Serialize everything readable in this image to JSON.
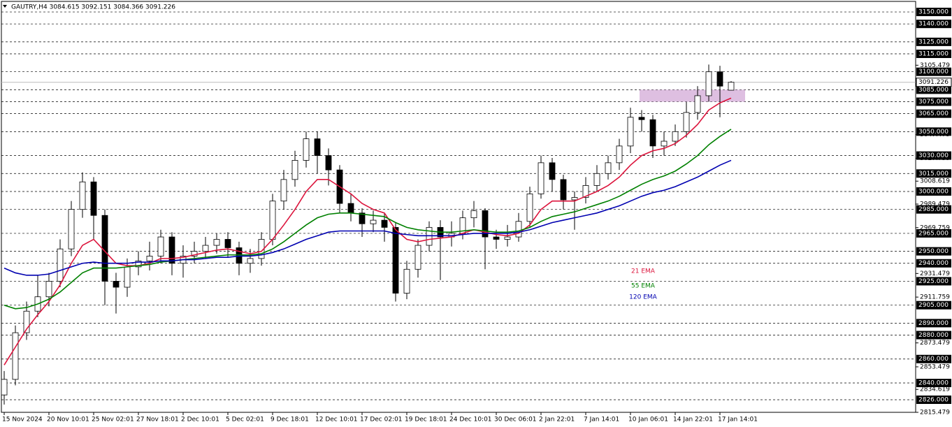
{
  "chart_data": {
    "type": "candlestick",
    "title": "GAUTRY,H4  3084.615 3092.151 3084.366 3091.226",
    "categories": [
      "15 Nov 2024",
      null,
      null,
      null,
      "20 Nov 10:01",
      null,
      null,
      null,
      "25 Nov 02:01",
      null,
      null,
      null,
      "27 Nov 18:01",
      null,
      null,
      null,
      "2 Dec 10:01",
      null,
      null,
      null,
      "5 Dec 02:01",
      null,
      null,
      null,
      "9 Dec 18:01",
      null,
      null,
      null,
      "12 Dec 10:01",
      null,
      null,
      null,
      "17 Dec 02:01",
      null,
      null,
      null,
      "19 Dec 18:01",
      null,
      null,
      null,
      "24 Dec 10:01",
      null,
      null,
      null,
      "30 Dec 06:01",
      null,
      null,
      null,
      "2 Jan 22:01",
      null,
      null,
      null,
      "7 Jan 14:01",
      null,
      null,
      null,
      "10 Jan 06:01",
      null,
      null,
      null,
      "14 Jan 22:01",
      null,
      null,
      null,
      "17 Jan 14:01",
      null
    ],
    "open": [
      2830,
      2843,
      2882,
      2900,
      2912,
      2925,
      2952,
      2985,
      3008,
      2980,
      2925,
      2920,
      2937,
      2942,
      2946,
      2962,
      2940,
      2946,
      2950,
      2955,
      2960,
      2953,
      2940,
      2944,
      2960,
      2992,
      3010,
      3026,
      3044,
      3030,
      3018,
      2990,
      2982,
      2973,
      2976,
      2970,
      2915,
      2935,
      2955,
      2970,
      2962,
      2965,
      2978,
      2984,
      2962,
      2960,
      2962,
      2975,
      2998,
      3024,
      3010,
      2993,
      2995,
      3005,
      3015,
      3024,
      3038,
      3062,
      3060,
      3038,
      3042,
      3050,
      3066,
      3080,
      3100,
      3084.615
    ],
    "high": [
      2850,
      2888,
      2908,
      2930,
      2932,
      2960,
      2992,
      3016,
      3012,
      2985,
      2932,
      2944,
      2950,
      2958,
      2968,
      2966,
      2955,
      2958,
      2962,
      2965,
      2966,
      2958,
      2952,
      2966,
      2998,
      3018,
      3034,
      3050,
      3050,
      3036,
      3022,
      2998,
      2986,
      2984,
      2982,
      2974,
      2942,
      2960,
      2975,
      2976,
      2975,
      2984,
      2992,
      2986,
      2968,
      2972,
      2982,
      3004,
      3030,
      3028,
      3014,
      3000,
      3012,
      3022,
      3030,
      3044,
      3070,
      3068,
      3064,
      3050,
      3056,
      3075,
      3088,
      3106,
      3105,
      3092.151
    ],
    "low": [
      2822,
      2838,
      2876,
      2895,
      2904,
      2920,
      2946,
      2978,
      2960,
      2905,
      2898,
      2912,
      2930,
      2934,
      2940,
      2930,
      2928,
      2940,
      2944,
      2948,
      2945,
      2930,
      2932,
      2938,
      2955,
      2985,
      3004,
      3020,
      3015,
      3005,
      2982,
      2975,
      2962,
      2966,
      2958,
      2908,
      2910,
      2928,
      2950,
      2926,
      2954,
      2960,
      2970,
      2935,
      2952,
      2954,
      2958,
      2970,
      2994,
      3000,
      2985,
      2968,
      2990,
      3000,
      3010,
      3018,
      3032,
      3050,
      3028,
      3030,
      3038,
      3045,
      3060,
      3075,
      3062,
      3084.366
    ],
    "close": [
      2843,
      2882,
      2900,
      2912,
      2925,
      2952,
      2985,
      3008,
      2980,
      2925,
      2920,
      2937,
      2942,
      2946,
      2962,
      2940,
      2946,
      2950,
      2955,
      2960,
      2953,
      2940,
      2944,
      2960,
      2992,
      3010,
      3026,
      3044,
      3030,
      3018,
      2990,
      2982,
      2973,
      2976,
      2970,
      2915,
      2935,
      2955,
      2970,
      2962,
      2965,
      2978,
      2984,
      2962,
      2960,
      2962,
      2975,
      2998,
      3024,
      3010,
      2993,
      2995,
      3005,
      3015,
      3024,
      3038,
      3062,
      3060,
      3038,
      3042,
      3050,
      3066,
      3080,
      3100,
      3088,
      3091.226
    ],
    "series": [
      {
        "name": "21 EMA",
        "color": "#dc143c",
        "values": [
          2855,
          2870,
          2885,
          2897,
          2908,
          2922,
          2940,
          2955,
          2960,
          2950,
          2940,
          2938,
          2938,
          2940,
          2944,
          2944,
          2945,
          2947,
          2949,
          2951,
          2952,
          2950,
          2948,
          2950,
          2960,
          2972,
          2985,
          3000,
          3010,
          3010,
          3004,
          2998,
          2990,
          2985,
          2982,
          2968,
          2960,
          2958,
          2960,
          2961,
          2962,
          2965,
          2968,
          2966,
          2964,
          2963,
          2965,
          2972,
          2985,
          2992,
          2992,
          2992,
          2996,
          3000,
          3005,
          3012,
          3022,
          3030,
          3034,
          3036,
          3040,
          3047,
          3056,
          3068,
          3074,
          3078
        ]
      },
      {
        "name": "55 EMA",
        "color": "#008000",
        "values": [
          2905,
          2902,
          2903,
          2906,
          2910,
          2916,
          2924,
          2932,
          2936,
          2936,
          2936,
          2937,
          2938,
          2939,
          2941,
          2942,
          2943,
          2944,
          2945,
          2946,
          2947,
          2947,
          2947,
          2948,
          2952,
          2958,
          2965,
          2972,
          2978,
          2981,
          2982,
          2982,
          2981,
          2980,
          2979,
          2974,
          2970,
          2968,
          2967,
          2966,
          2966,
          2967,
          2968,
          2967,
          2966,
          2966,
          2967,
          2970,
          2975,
          2979,
          2981,
          2983,
          2986,
          2989,
          2992,
          2996,
          3001,
          3006,
          3010,
          3013,
          3017,
          3023,
          3030,
          3039,
          3046,
          3052
        ]
      },
      {
        "name": "120 EMA",
        "color": "#0000b0",
        "values": [
          2936,
          2932,
          2930,
          2930,
          2931,
          2934,
          2937,
          2940,
          2941,
          2940,
          2940,
          2940,
          2941,
          2941,
          2942,
          2942,
          2943,
          2943,
          2944,
          2945,
          2945,
          2946,
          2946,
          2947,
          2949,
          2952,
          2956,
          2960,
          2963,
          2966,
          2967,
          2967,
          2967,
          2967,
          2967,
          2965,
          2964,
          2963,
          2963,
          2963,
          2963,
          2964,
          2965,
          2965,
          2965,
          2965,
          2966,
          2968,
          2971,
          2974,
          2976,
          2978,
          2980,
          2982,
          2985,
          2988,
          2992,
          2996,
          2999,
          3001,
          3004,
          3008,
          3012,
          3017,
          3022,
          3026
        ]
      }
    ],
    "zone": {
      "ylim": [
        3075,
        3085
      ],
      "color": "#d8b4dc"
    },
    "current_price": 3091.226,
    "ylim": [
      2815.479,
      3158.8
    ],
    "levels": [
      {
        "value": 3150,
        "label": "3150.000"
      },
      {
        "value": 3140,
        "label": "3140.000"
      },
      {
        "value": 3125,
        "label": "3125.000"
      },
      {
        "value": 3115,
        "label": "3115.000"
      },
      {
        "value": 3100,
        "label": "3100.000"
      },
      {
        "value": 3085,
        "label": "3085.000"
      },
      {
        "value": 3075,
        "label": "3075.000"
      },
      {
        "value": 3065,
        "label": "3065.000"
      },
      {
        "value": 3050,
        "label": "3050.000"
      },
      {
        "value": 3030,
        "label": "3030.000"
      },
      {
        "value": 3015,
        "label": "3015.000"
      },
      {
        "value": 3000,
        "label": "3000.000"
      },
      {
        "value": 2985,
        "label": "2985.000"
      },
      {
        "value": 2965,
        "label": "2965.000"
      },
      {
        "value": 2950,
        "label": "2950.000"
      },
      {
        "value": 2940,
        "label": "2940.000"
      },
      {
        "value": 2925,
        "label": "2925.000"
      },
      {
        "value": 2905,
        "label": "2905.000"
      },
      {
        "value": 2890,
        "label": "2890.000"
      },
      {
        "value": 2880,
        "label": "2880.000"
      },
      {
        "value": 2860,
        "label": "2860.000"
      },
      {
        "value": 2840,
        "label": "2840.000"
      },
      {
        "value": 2826,
        "label": "2826.000"
      }
    ],
    "yticks": [
      3105.479,
      3047.479,
      3027.759,
      3008.619,
      2989.479,
      2969.759,
      2931.479,
      2911.759,
      2873.479,
      2853.479,
      2834.619,
      2815.479
    ]
  }
}
